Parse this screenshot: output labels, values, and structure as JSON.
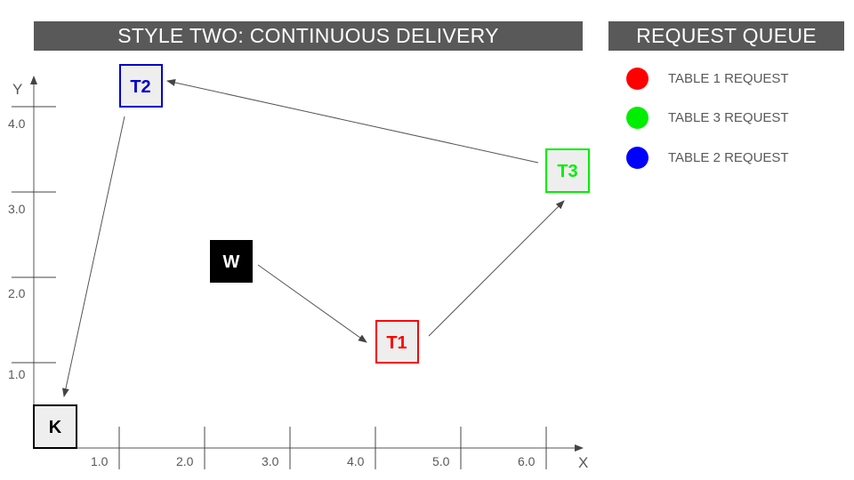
{
  "header": {
    "title": "STYLE TWO: CONTINUOUS DELIVERY"
  },
  "queue": {
    "title": "REQUEST QUEUE",
    "items": [
      {
        "label": "TABLE 1 REQUEST",
        "color": "#ff0000"
      },
      {
        "label": "TABLE 3 REQUEST",
        "color": "#00ee00"
      },
      {
        "label": "TABLE 2 REQUEST",
        "color": "#0000ff"
      }
    ]
  },
  "axes": {
    "x_label": "X",
    "y_label": "Y",
    "x_ticks": [
      "1.0",
      "2.0",
      "3.0",
      "4.0",
      "5.0",
      "6.0"
    ],
    "y_ticks": [
      "1.0",
      "2.0",
      "3.0",
      "4.0"
    ]
  },
  "nodes": {
    "kitchen": {
      "label": "K",
      "color": "#000000",
      "fill": "#eeeeee"
    },
    "waiter": {
      "label": "W",
      "color": "#ffffff",
      "fill": "#000000"
    },
    "table1": {
      "label": "T1",
      "color": "#ff0000",
      "fill": "#eeeeee"
    },
    "table2": {
      "label": "T2",
      "color": "#0000cc",
      "fill": "#eeeeee"
    },
    "table3": {
      "label": "T3",
      "color": "#00ee00",
      "fill": "#eeeeee"
    }
  },
  "path": [
    "waiter",
    "table1",
    "table3",
    "table2",
    "kitchen"
  ]
}
